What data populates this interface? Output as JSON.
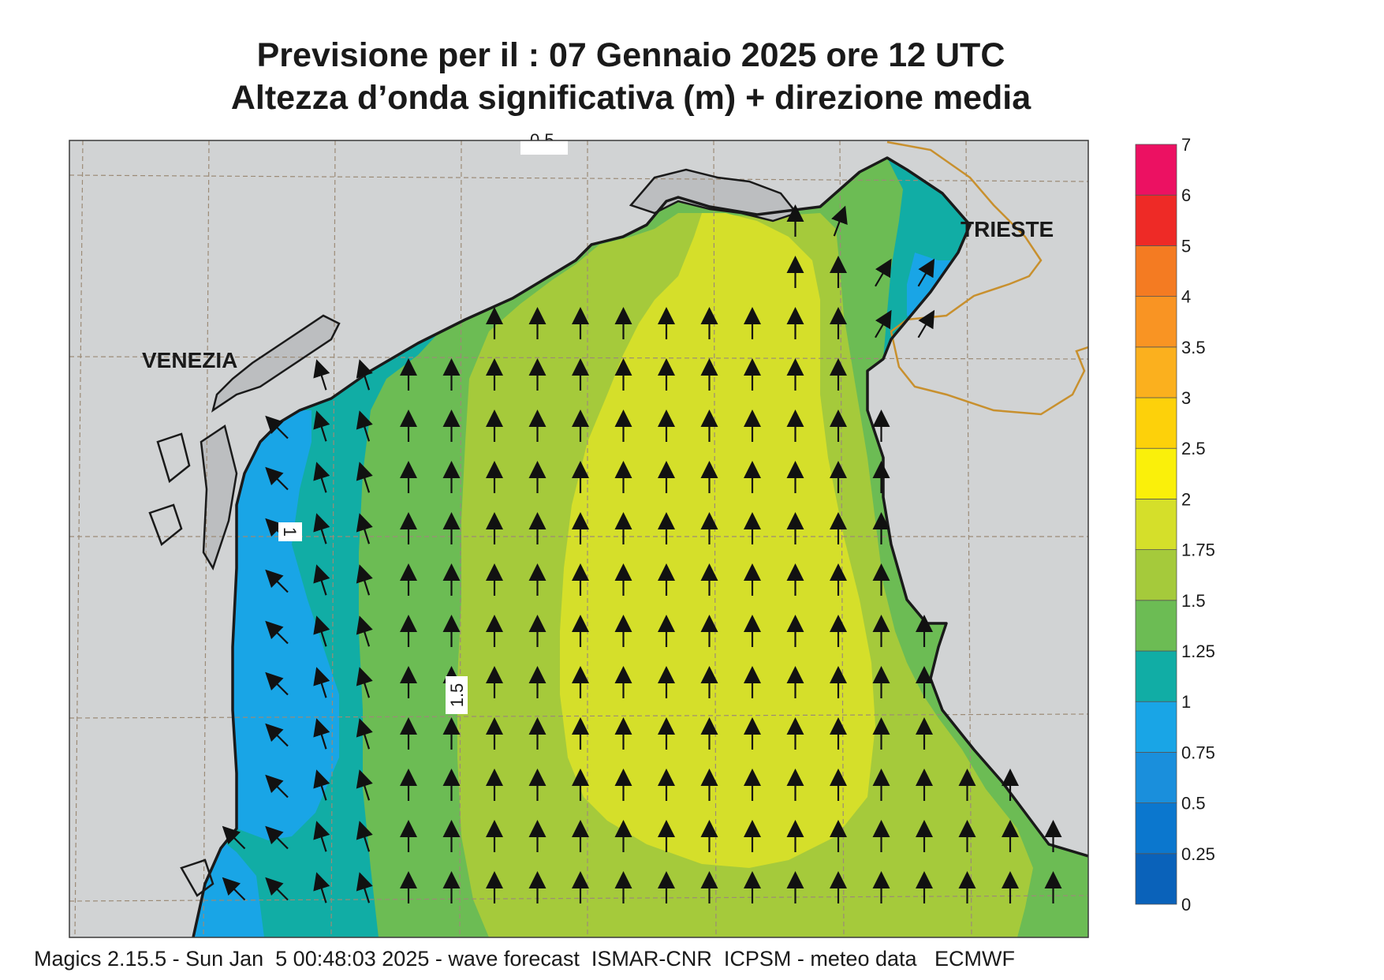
{
  "header": {
    "title": "Previsione per il  :  07  Gennaio  2025   ore 12 UTC",
    "subtitle": "Altezza d’onda significativa (m) + direzione media"
  },
  "map": {
    "cities": [
      "VENEZIA",
      "TRIESTE"
    ],
    "contour_labels": [
      "1",
      "1.5",
      "0.5"
    ],
    "direction": "toward north (arrows point up / north-northwest near western coast)"
  },
  "legend": {
    "labels": [
      "0",
      "0.25",
      "0.5",
      "0.75",
      "1",
      "1.25",
      "1.5",
      "1.75",
      "2",
      "2.5",
      "3",
      "3.5",
      "4",
      "5",
      "6",
      "7"
    ],
    "colors": [
      "#0a62ba",
      "#0b77ce",
      "#1a8fdc",
      "#19a5e6",
      "#11ada5",
      "#6cbc54",
      "#a5ca3b",
      "#d5df2a",
      "#faf00a",
      "#fdd10a",
      "#fbb01e",
      "#f99423",
      "#f47b22",
      "#ee2a26",
      "#ec1162"
    ]
  },
  "footer": {
    "text": "Magics 2.15.5 - Sun Jan  5 00:48:03 2025 - wave forecast  ISMAR-CNR  ICPSM - meteo data   ECMWF"
  },
  "colors": {
    "land": "#d1d3d4",
    "coast": "#1a1a1a",
    "border": "#c8902e",
    "grid": "#9c8b77"
  }
}
